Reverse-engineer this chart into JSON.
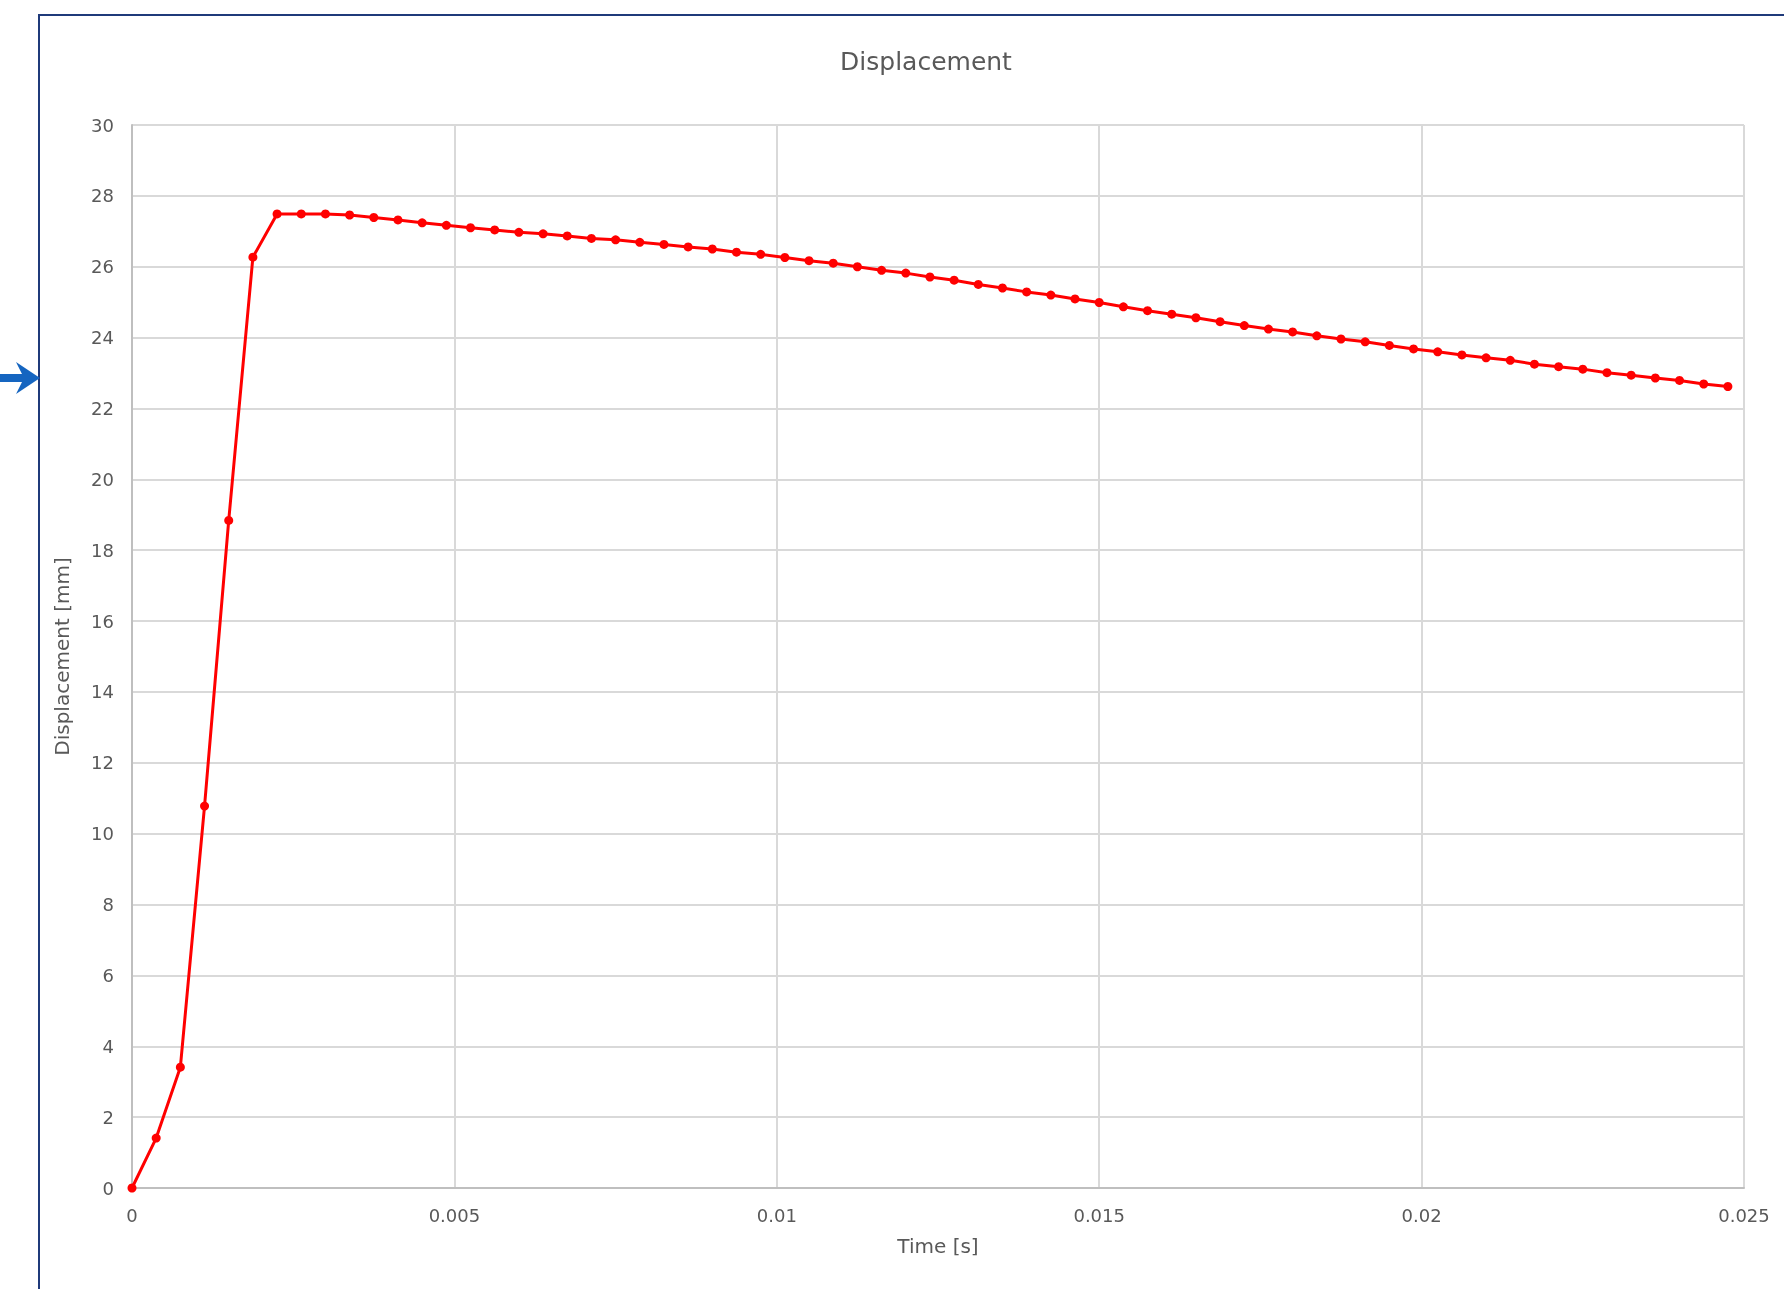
{
  "chart_data": {
    "type": "line",
    "title": "Displacement",
    "xlabel": "Time [s]",
    "ylabel": "Displacement [mm]",
    "x": [
      0,
      0.000375,
      0.00075,
      0.001125,
      0.0015,
      0.001875,
      0.00225,
      0.002625,
      0.003,
      0.003375,
      0.00375,
      0.004125,
      0.0045,
      0.004875,
      0.00525,
      0.005625,
      0.006,
      0.006375,
      0.00675,
      0.007125,
      0.0075,
      0.007875,
      0.00825,
      0.008625,
      0.009,
      0.009375,
      0.00975,
      0.010125,
      0.0105,
      0.010875,
      0.01125,
      0.011625,
      0.012,
      0.012375,
      0.01275,
      0.013125,
      0.0135,
      0.013875,
      0.01425,
      0.014625,
      0.015,
      0.015375,
      0.01575,
      0.016125,
      0.0165,
      0.016875,
      0.01725,
      0.017625,
      0.018,
      0.018375,
      0.01875,
      0.019125,
      0.0195,
      0.019875,
      0.02025,
      0.020625,
      0.021,
      0.021375,
      0.02175,
      0.022125,
      0.0225,
      0.022875,
      0.02325,
      0.023625,
      0.024,
      0.024375,
      0.02475
    ],
    "series": [
      {
        "color": "#ff0000",
        "values": [
          0,
          1.41,
          3.41,
          10.78,
          18.84,
          26.27,
          27.49,
          27.49,
          27.49,
          27.46,
          27.39,
          27.32,
          27.24,
          27.17,
          27.1,
          27.04,
          26.97,
          26.93,
          26.87,
          26.8,
          26.76,
          26.69,
          26.63,
          26.56,
          26.5,
          26.41,
          26.35,
          26.26,
          26.17,
          26.1,
          26.0,
          25.9,
          25.82,
          25.71,
          25.62,
          25.5,
          25.4,
          25.29,
          25.2,
          25.09,
          24.99,
          24.87,
          24.76,
          24.66,
          24.56,
          24.45,
          24.34,
          24.24,
          24.16,
          24.05,
          23.96,
          23.88,
          23.78,
          23.68,
          23.6,
          23.51,
          23.43,
          23.36,
          23.25,
          23.18,
          23.11,
          23.01,
          22.94,
          22.86,
          22.79,
          22.69,
          22.62
        ]
      }
    ],
    "xlim": [
      0,
      0.025
    ],
    "xticks": [
      0,
      0.005,
      0.01,
      0.015,
      0.02,
      0.025
    ],
    "ylim": [
      0,
      30
    ],
    "yticks": [
      0,
      2,
      4,
      6,
      8,
      10,
      12,
      14,
      16,
      18,
      20,
      22,
      24,
      26,
      28,
      30
    ],
    "grid": true,
    "marker": "circle",
    "line_style": "solid"
  }
}
